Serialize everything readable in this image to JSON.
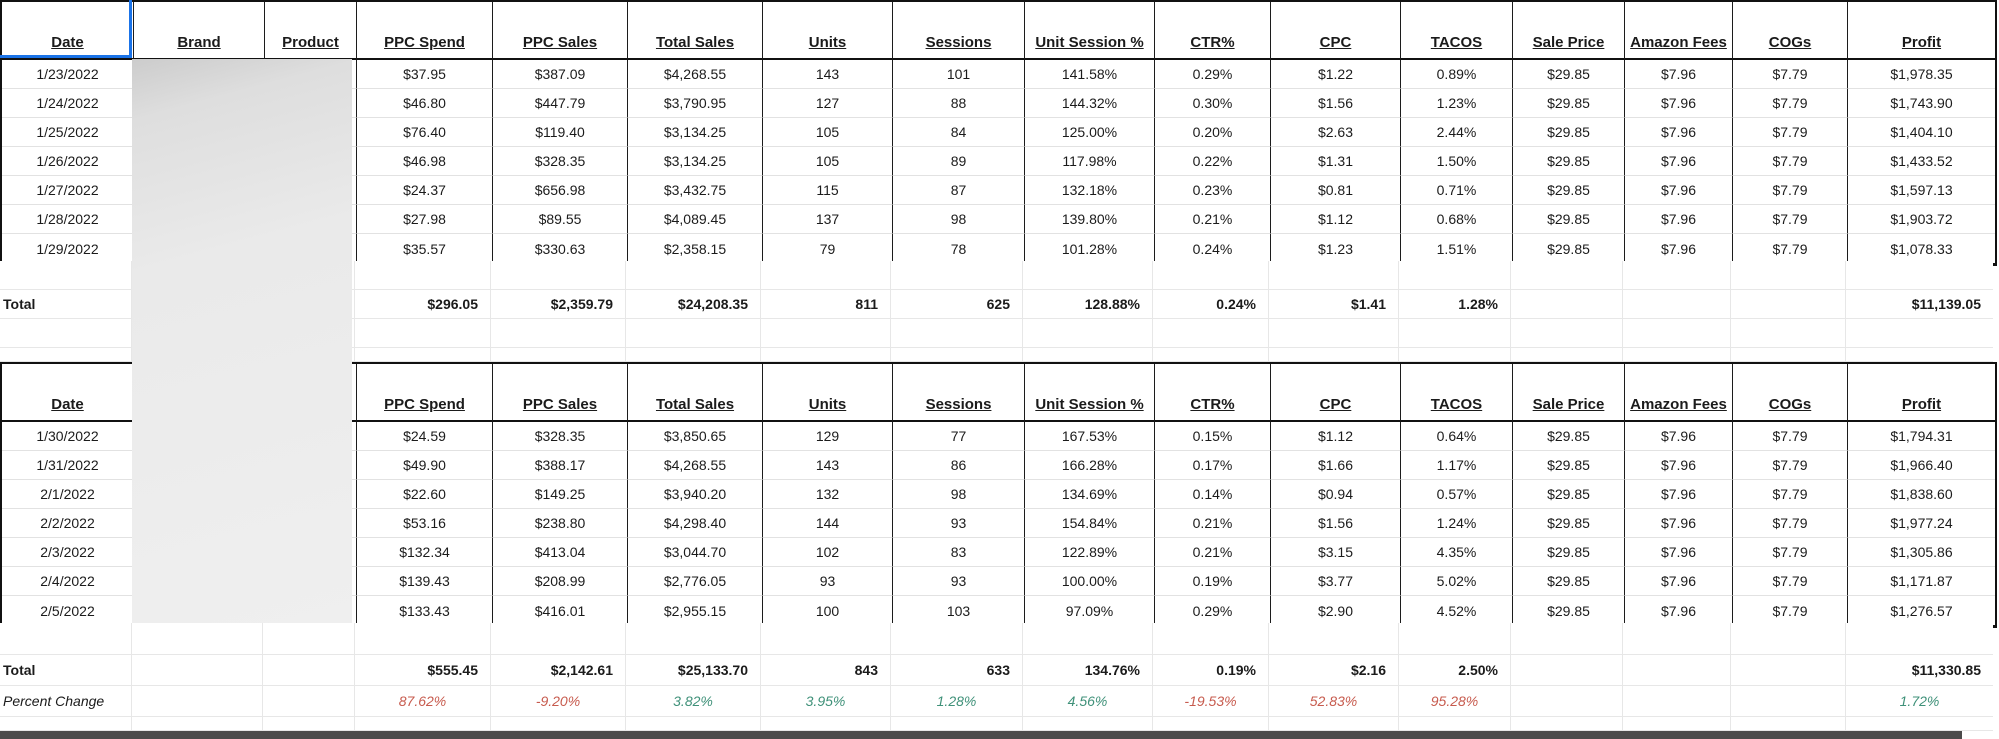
{
  "columns": [
    {
      "label": "Date"
    },
    {
      "label": "Brand"
    },
    {
      "label": "Product"
    },
    {
      "label": "PPC Spend"
    },
    {
      "label": "PPC Sales"
    },
    {
      "label": "Total Sales"
    },
    {
      "label": "Units"
    },
    {
      "label": "Sessions"
    },
    {
      "label": "Unit Session %"
    },
    {
      "label": "CTR%"
    },
    {
      "label": "CPC"
    },
    {
      "label": "TACOS"
    },
    {
      "label": "Sale Price"
    },
    {
      "label": "Amazon Fees"
    },
    {
      "label": "COGs"
    },
    {
      "label": "Profit"
    }
  ],
  "labels": {
    "total": "Total",
    "percent_change": "Percent Change"
  },
  "colors": {
    "selection_blue": "#1a73e8",
    "negative_red": "#c75b4e",
    "positive_green": "#3f9179",
    "redaction_gray": "#ebebeb",
    "bottom_strip_gray": "#4b4b4b"
  },
  "tables": [
    {
      "name": "week1",
      "rows": [
        [
          "1/23/2022",
          "",
          "",
          "$37.95",
          "$387.09",
          "$4,268.55",
          "143",
          "101",
          "141.58%",
          "0.29%",
          "$1.22",
          "0.89%",
          "$29.85",
          "$7.96",
          "$7.79",
          "$1,978.35"
        ],
        [
          "1/24/2022",
          "",
          "",
          "$46.80",
          "$447.79",
          "$3,790.95",
          "127",
          "88",
          "144.32%",
          "0.30%",
          "$1.56",
          "1.23%",
          "$29.85",
          "$7.96",
          "$7.79",
          "$1,743.90"
        ],
        [
          "1/25/2022",
          "",
          "",
          "$76.40",
          "$119.40",
          "$3,134.25",
          "105",
          "84",
          "125.00%",
          "0.20%",
          "$2.63",
          "2.44%",
          "$29.85",
          "$7.96",
          "$7.79",
          "$1,404.10"
        ],
        [
          "1/26/2022",
          "",
          "",
          "$46.98",
          "$328.35",
          "$3,134.25",
          "105",
          "89",
          "117.98%",
          "0.22%",
          "$1.31",
          "1.50%",
          "$29.85",
          "$7.96",
          "$7.79",
          "$1,433.52"
        ],
        [
          "1/27/2022",
          "",
          "",
          "$24.37",
          "$656.98",
          "$3,432.75",
          "115",
          "87",
          "132.18%",
          "0.23%",
          "$0.81",
          "0.71%",
          "$29.85",
          "$7.96",
          "$7.79",
          "$1,597.13"
        ],
        [
          "1/28/2022",
          "",
          "",
          "$27.98",
          "$89.55",
          "$4,089.45",
          "137",
          "98",
          "139.80%",
          "0.21%",
          "$1.12",
          "0.68%",
          "$29.85",
          "$7.96",
          "$7.79",
          "$1,903.72"
        ],
        [
          "1/29/2022",
          "",
          "",
          "$35.57",
          "$330.63",
          "$2,358.15",
          "79",
          "78",
          "101.28%",
          "0.24%",
          "$1.23",
          "1.51%",
          "$29.85",
          "$7.96",
          "$7.79",
          "$1,078.33"
        ]
      ],
      "total": [
        "Total",
        "",
        "",
        "$296.05",
        "$2,359.79",
        "$24,208.35",
        "811",
        "625",
        "128.88%",
        "0.24%",
        "$1.41",
        "1.28%",
        "",
        "",
        "",
        "$11,139.05"
      ]
    },
    {
      "name": "week2",
      "rows": [
        [
          "1/30/2022",
          "",
          "",
          "$24.59",
          "$328.35",
          "$3,850.65",
          "129",
          "77",
          "167.53%",
          "0.15%",
          "$1.12",
          "0.64%",
          "$29.85",
          "$7.96",
          "$7.79",
          "$1,794.31"
        ],
        [
          "1/31/2022",
          "",
          "",
          "$49.90",
          "$388.17",
          "$4,268.55",
          "143",
          "86",
          "166.28%",
          "0.17%",
          "$1.66",
          "1.17%",
          "$29.85",
          "$7.96",
          "$7.79",
          "$1,966.40"
        ],
        [
          "2/1/2022",
          "",
          "",
          "$22.60",
          "$149.25",
          "$3,940.20",
          "132",
          "98",
          "134.69%",
          "0.14%",
          "$0.94",
          "0.57%",
          "$29.85",
          "$7.96",
          "$7.79",
          "$1,838.60"
        ],
        [
          "2/2/2022",
          "",
          "",
          "$53.16",
          "$238.80",
          "$4,298.40",
          "144",
          "93",
          "154.84%",
          "0.21%",
          "$1.56",
          "1.24%",
          "$29.85",
          "$7.96",
          "$7.79",
          "$1,977.24"
        ],
        [
          "2/3/2022",
          "",
          "",
          "$132.34",
          "$413.04",
          "$3,044.70",
          "102",
          "83",
          "122.89%",
          "0.21%",
          "$3.15",
          "4.35%",
          "$29.85",
          "$7.96",
          "$7.79",
          "$1,305.86"
        ],
        [
          "2/4/2022",
          "",
          "",
          "$139.43",
          "$208.99",
          "$2,776.05",
          "93",
          "93",
          "100.00%",
          "0.19%",
          "$3.77",
          "5.02%",
          "$29.85",
          "$7.96",
          "$7.79",
          "$1,171.87"
        ],
        [
          "2/5/2022",
          "",
          "",
          "$133.43",
          "$416.01",
          "$2,955.15",
          "100",
          "103",
          "97.09%",
          "0.29%",
          "$2.90",
          "4.52%",
          "$29.85",
          "$7.96",
          "$7.79",
          "$1,276.57"
        ]
      ],
      "total": [
        "Total",
        "",
        "",
        "$555.45",
        "$2,142.61",
        "$25,133.70",
        "843",
        "633",
        "134.76%",
        "0.19%",
        "$2.16",
        "2.50%",
        "",
        "",
        "",
        "$11,330.85"
      ],
      "percent_change": [
        "Percent Change",
        "",
        "",
        "87.62%",
        "-9.20%",
        "3.82%",
        "3.95%",
        "1.28%",
        "4.56%",
        "-19.53%",
        "52.83%",
        "95.28%",
        "",
        "",
        "",
        "1.72%"
      ],
      "percent_colors": [
        "",
        "",
        "",
        "red",
        "red",
        "green",
        "green",
        "green",
        "green",
        "red",
        "red",
        "red",
        "",
        "",
        "",
        "green"
      ]
    }
  ]
}
